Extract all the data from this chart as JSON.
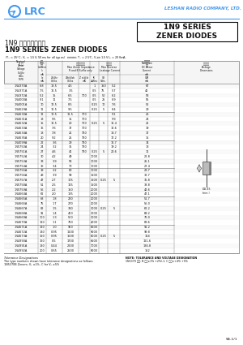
{
  "title_box": "1N9 SERIES\nZENER DIODES",
  "chinese_title": "1N9 系列稳压二极管",
  "english_title": "1N9 SERIES ZENER DIODES",
  "company": "LESHAN RADIO COMPANY, LTD.",
  "conditions_text": "(Tₕ = 25°C, Vₕ = 1.5V, 50ms for all types)   最大反向电流: Tₕ = 25°C, V_Z 见表 1.5V I_R = 200mA.",
  "rows": [
    [
      "1N4370A",
      "6.8",
      "18.5",
      "4.5",
      "",
      "1",
      "150",
      "5.2",
      "67"
    ],
    [
      "1N4371A",
      "7.5",
      "16.5",
      "3.5",
      "",
      "0.5",
      "75",
      "5.7",
      "42"
    ],
    [
      "1N4372A",
      "5.2",
      "15",
      "6.5",
      "700",
      "0.5",
      "50",
      "6.2",
      "58"
    ],
    [
      "1N4000A",
      "9.1",
      "11",
      "7.5",
      "",
      "0.5",
      "25",
      "6.9",
      "55"
    ],
    [
      "1N4001A",
      "10",
      "12.5",
      "8.5",
      "",
      "0.25",
      "10",
      "7.6",
      "52"
    ],
    [
      "1N4629A",
      "11",
      "11.5",
      "9.5",
      "",
      "0.25",
      "5",
      "8.4",
      "29"
    ],
    [
      "1N4630A",
      "12",
      "10.5",
      "11.5",
      "700",
      "",
      "",
      "9.1",
      "26"
    ],
    [
      "1N4631A",
      "13",
      "9.5",
      "15",
      "700",
      "",
      "",
      "9.9",
      "24"
    ],
    [
      "1N4632A",
      "15",
      "11.5",
      "20",
      "700",
      "0.25",
      "5",
      "11.4",
      "21"
    ],
    [
      "1N4633A",
      "16",
      "7.6",
      "17",
      "700",
      "",
      "",
      "12.6",
      "19"
    ],
    [
      "1N4634A",
      "18",
      "7.8",
      "21",
      "750",
      "",
      "",
      "13.7",
      "17"
    ],
    [
      "1N4635A",
      "20",
      "9.2",
      "25",
      "750",
      "",
      "",
      "17.2",
      "15"
    ],
    [
      "1N4099A",
      "22",
      "3.6",
      "29",
      "750",
      "",
      "",
      "16.7",
      "14"
    ],
    [
      "1N5750A",
      "24",
      "3.2",
      "35",
      "750",
      "",
      "",
      "19.2",
      "13"
    ],
    [
      "1N5751A",
      "27",
      "4.6",
      "41",
      "750",
      "0.25",
      "5",
      "20.6",
      "11"
    ],
    [
      "1N5752A",
      "30",
      "4.2",
      "49",
      "",
      "1000",
      "",
      "",
      "22.8",
      "10"
    ],
    [
      "1N5753A",
      "33",
      "3.9",
      "58",
      "",
      "1000",
      "",
      "",
      "25.1",
      "9.2"
    ],
    [
      "1N5754A",
      "36",
      "3.4",
      "70",
      "",
      "1000",
      "",
      "",
      "27.4",
      "6.5"
    ],
    [
      "1N5755A",
      "39",
      "3.2",
      "80",
      "",
      "1000",
      "",
      "",
      "29.7",
      "7.6"
    ],
    [
      "1N5756A",
      "43",
      "3.9",
      "99",
      "",
      "1500",
      "",
      "",
      "32.7",
      "7.0"
    ],
    [
      "1N5757A",
      "47",
      "2.7",
      "105",
      "",
      "1500",
      "0.25",
      "5",
      "35.8",
      "6.4"
    ],
    [
      "1N5758A",
      "51",
      "2.5",
      "125",
      "",
      "1500",
      "",
      "",
      "38.8",
      "5.9"
    ],
    [
      "1N5759A",
      "56",
      "2.2",
      "150",
      "",
      "2000",
      "",
      "",
      "42.6",
      "5.4"
    ],
    [
      "1N4664A",
      "62",
      "2.0",
      "185",
      "",
      "2000",
      "",
      "",
      "47.1",
      "4.8"
    ],
    [
      "1N4665A",
      "68",
      "1.8",
      "230",
      "",
      "2000",
      "",
      "",
      "51.7",
      "4.5"
    ],
    [
      "1N4666A",
      "75",
      "1.7",
      "270",
      "",
      "2000",
      "",
      "",
      "56.0",
      "4.0"
    ],
    [
      "1N4667A",
      "82",
      "1.5",
      "330",
      "",
      "3000",
      "0.25",
      "5",
      "62.2",
      "3.7"
    ],
    [
      "1N4668A",
      "91",
      "1.4",
      "400",
      "",
      "3000",
      "",
      "",
      "69.2",
      "3.3"
    ],
    [
      "1N4669A",
      "100",
      "1.3",
      "500",
      "",
      "3000",
      "",
      "",
      "76.0",
      "3.0"
    ],
    [
      "1N4670A",
      "110",
      "1.1",
      "750",
      "",
      "4000",
      "",
      "",
      "83.6",
      "2.7"
    ],
    [
      "1N4671A",
      "120",
      "1.0",
      "900",
      "",
      "8500",
      "",
      "",
      "91.2",
      "2.5"
    ],
    [
      "1N4672A",
      "130",
      "0.95",
      "1100",
      "",
      "9000",
      "",
      "",
      "99.8",
      "2.3"
    ],
    [
      "1N4673A",
      "150",
      "0.95",
      "1500",
      "",
      "6000",
      "0.25",
      "5",
      "114",
      "2.0"
    ],
    [
      "1N4990A",
      "160",
      "0.5",
      "1700",
      "",
      "6500",
      "",
      "",
      "121.6",
      "1.9"
    ],
    [
      "1N4991A",
      "180",
      "0.44",
      "2200",
      "",
      "7000",
      "",
      "",
      "136.8",
      "1.7"
    ],
    [
      "1N4992A",
      "200",
      "0.65",
      "2500",
      "",
      "9000",
      "",
      "",
      "152",
      "1.5"
    ]
  ],
  "bg_color": "#ffffff",
  "header_color": "#4499ee",
  "table_line_color": "#888888",
  "text_color": "#111111",
  "page": "5B-1/1"
}
